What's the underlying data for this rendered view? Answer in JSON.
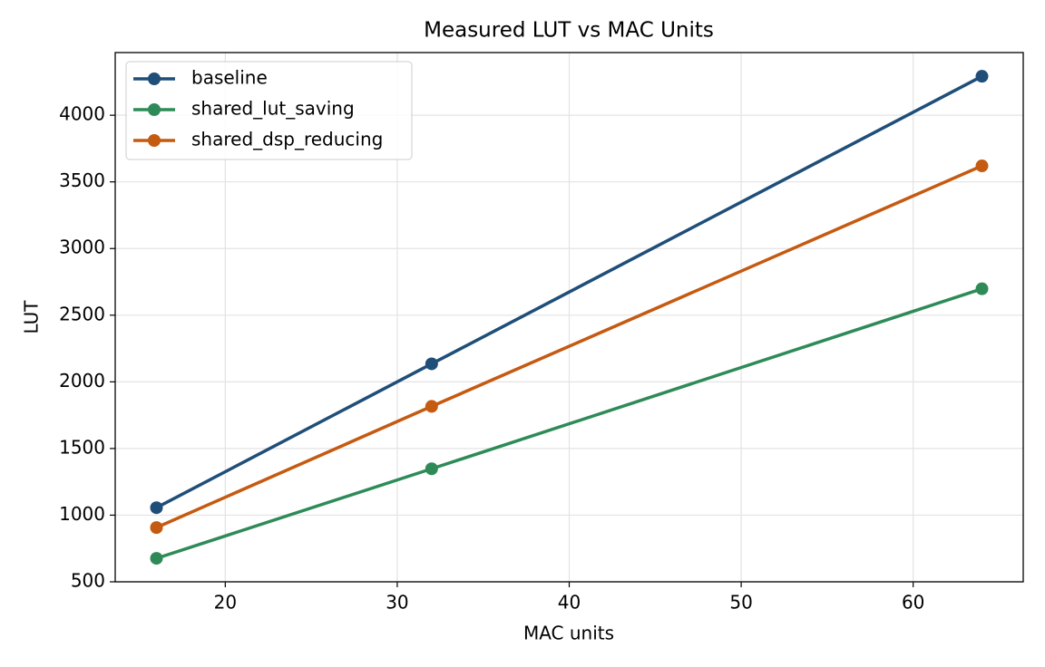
{
  "chart_data": {
    "type": "line",
    "title": "Measured LUT vs MAC Units",
    "x_label": "MAC units",
    "y_label": "LUT",
    "x": [
      16,
      32,
      64
    ],
    "series": [
      {
        "name": "baseline",
        "color": "#1f4e79",
        "values": [
          1056,
          2135,
          4292
        ]
      },
      {
        "name": "shared_lut_saving",
        "color": "#2e8b57",
        "values": [
          676,
          1348,
          2698
        ]
      },
      {
        "name": "shared_dsp_reducing",
        "color": "#c55a11",
        "values": [
          907,
          1816,
          3620
        ]
      }
    ],
    "xlim": [
      13.6,
      66.4
    ],
    "xticks": [
      20,
      30,
      40,
      50,
      60
    ],
    "ylim": [
      500,
      4470
    ],
    "yticks": [
      500,
      1000,
      1500,
      2000,
      2500,
      3000,
      3500,
      4000
    ],
    "grid": true,
    "legend": "upper-left"
  }
}
